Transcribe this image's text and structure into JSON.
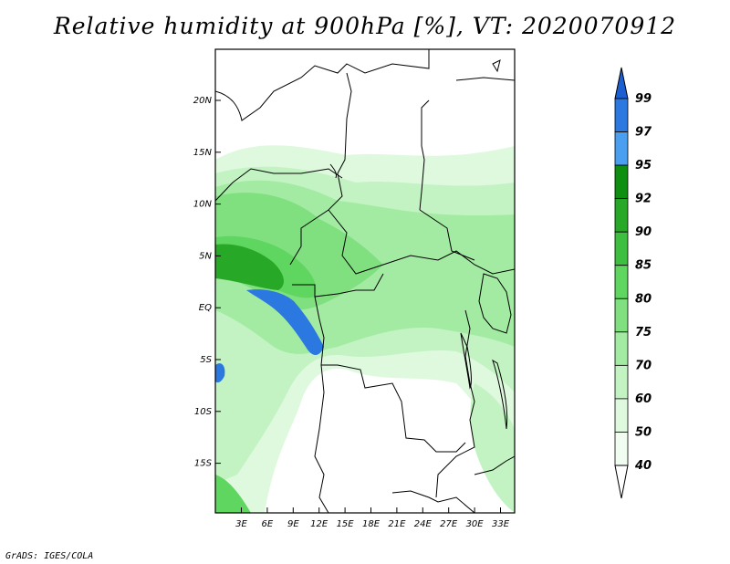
{
  "title": "Relative humidity at 900hPa [%], VT: 2020070912",
  "credit": "GrADS: IGES/COLA",
  "map": {
    "lat_labels": [
      "20N",
      "15N",
      "10N",
      "5N",
      "EQ",
      "5S",
      "10S",
      "15S"
    ],
    "lon_labels": [
      "3E",
      "6E",
      "9E",
      "12E",
      "15E",
      "18E",
      "21E",
      "24E",
      "27E",
      "30E",
      "33E"
    ]
  },
  "colorbar": {
    "levels": [
      "99",
      "97",
      "95",
      "92",
      "90",
      "85",
      "80",
      "75",
      "70",
      "60",
      "50",
      "40"
    ],
    "colors": [
      "#1b5fd1",
      "#2a78e0",
      "#4a9ff0",
      "#0f8f0f",
      "#27a827",
      "#3fbf3f",
      "#5fd65f",
      "#80e080",
      "#a3eba3",
      "#c3f3c3",
      "#def9de",
      "#f0fdf0"
    ]
  }
}
